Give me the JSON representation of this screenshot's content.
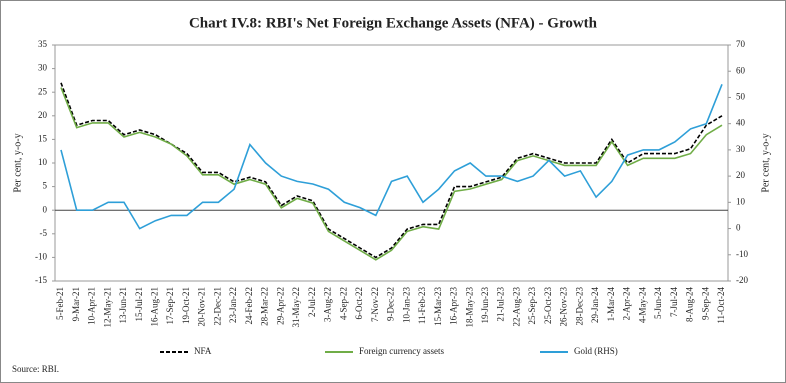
{
  "chart_data": {
    "type": "line",
    "title": "Chart IV.8: RBI's Net Foreign Exchange Assets (NFA) - Growth",
    "y_label": "Per cent, y-o-y",
    "y2_label": "Per cent, y-o-y",
    "source": "Source: RBI.",
    "categories": [
      "5-Feb-21",
      "9-Mar-21",
      "10-Apr-21",
      "12-May-21",
      "13-Jun-21",
      "15-Jul-21",
      "16-Aug-21",
      "17-Sep-21",
      "19-Oct-21",
      "20-Nov-21",
      "22-Dec-21",
      "23-Jan-22",
      "24-Feb-22",
      "28-Mar-22",
      "29-Apr-22",
      "31-May-22",
      "2-Jul-22",
      "3-Aug-22",
      "4-Sep-22",
      "6-Oct-22",
      "7-Nov-22",
      "9-Dec-22",
      "10-Jan-23",
      "11-Feb-23",
      "15-Mar-23",
      "16-Apr-23",
      "18-May-23",
      "19-Jun-23",
      "21-Jul-23",
      "22-Aug-23",
      "25-Sep-23",
      "25-Oct-23",
      "26-Nov-23",
      "28-Dec-23",
      "29-Jan-24",
      "1-Mar-24",
      "2-Apr-24",
      "4-May-24",
      "5-Jun-24",
      "7-Jul-24",
      "8-Aug-24",
      "9-Sep-24",
      "11-Oct-24"
    ],
    "series": [
      {
        "name": "NFA",
        "color": "#000000",
        "dashed": true,
        "values": [
          27,
          18,
          19,
          19,
          16,
          17,
          16,
          14,
          12,
          8,
          8,
          6,
          7,
          6,
          1,
          3,
          2,
          -4,
          -6,
          -8,
          -10,
          -8,
          -4,
          -3,
          -3,
          5,
          5,
          6,
          7,
          11,
          12,
          11,
          10,
          10,
          10,
          15,
          10,
          12,
          12,
          12,
          13,
          18,
          20
        ]
      },
      {
        "name": "Foreign currency assets",
        "color": "#70ad47",
        "dashed": false,
        "values": [
          26,
          17.5,
          18.5,
          18.5,
          15.5,
          16.5,
          15.5,
          14,
          11.5,
          7.5,
          7.5,
          5.5,
          6.5,
          5.5,
          0.5,
          2.5,
          1.5,
          -4.5,
          -6.5,
          -8.5,
          -10.5,
          -8.5,
          -4.5,
          -3.5,
          -4,
          4,
          4.5,
          5.5,
          6.5,
          10.5,
          11.5,
          10.5,
          9.5,
          9.5,
          9.5,
          14.5,
          9.5,
          11,
          11,
          11,
          12,
          16,
          18
        ]
      },
      {
        "name": "Gold (RHS)",
        "color": "#2e9fd8",
        "dashed": false,
        "axis": "y2",
        "values": [
          30,
          7,
          7,
          10,
          10,
          0,
          3,
          5,
          5,
          10,
          10,
          15,
          32,
          25,
          20,
          18,
          17,
          15,
          10,
          8,
          5,
          18,
          20,
          10,
          15,
          22,
          25,
          20,
          20,
          18,
          20,
          26,
          20,
          22,
          12,
          18,
          28,
          30,
          30,
          33,
          38,
          40,
          55
        ]
      }
    ],
    "ylim": [
      -15,
      35
    ],
    "yticks": [
      -15,
      -10,
      -5,
      0,
      5,
      10,
      15,
      20,
      25,
      30,
      35
    ],
    "y2lim": [
      -20,
      70
    ],
    "y2ticks": [
      -20,
      -10,
      0,
      10,
      20,
      30,
      40,
      50,
      60,
      70
    ],
    "legend": "bottom"
  }
}
